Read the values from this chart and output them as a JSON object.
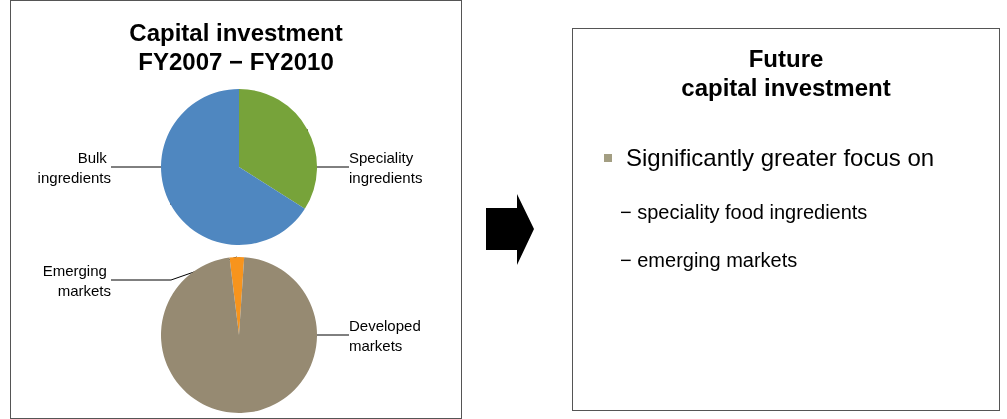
{
  "chart_data": [
    {
      "type": "pie",
      "title": "Capital investment\nFY2007 − FY2010",
      "categories": [
        "Speciality ingredients",
        "Bulk ingredients"
      ],
      "values": [
        34,
        66
      ],
      "colors": [
        "#77a33a",
        "#4f87c0"
      ]
    },
    {
      "type": "pie",
      "categories": [
        "Emerging markets",
        "Developed markets"
      ],
      "values": [
        3,
        97
      ],
      "colors": [
        "#f7941d",
        "#968a72"
      ]
    },
    {
      "type": "other",
      "title": "Future\ncapital investment",
      "annotations": [
        "Significantly greater focus on",
        "− speciality food ingredients",
        "− emerging markets"
      ]
    }
  ]
}
